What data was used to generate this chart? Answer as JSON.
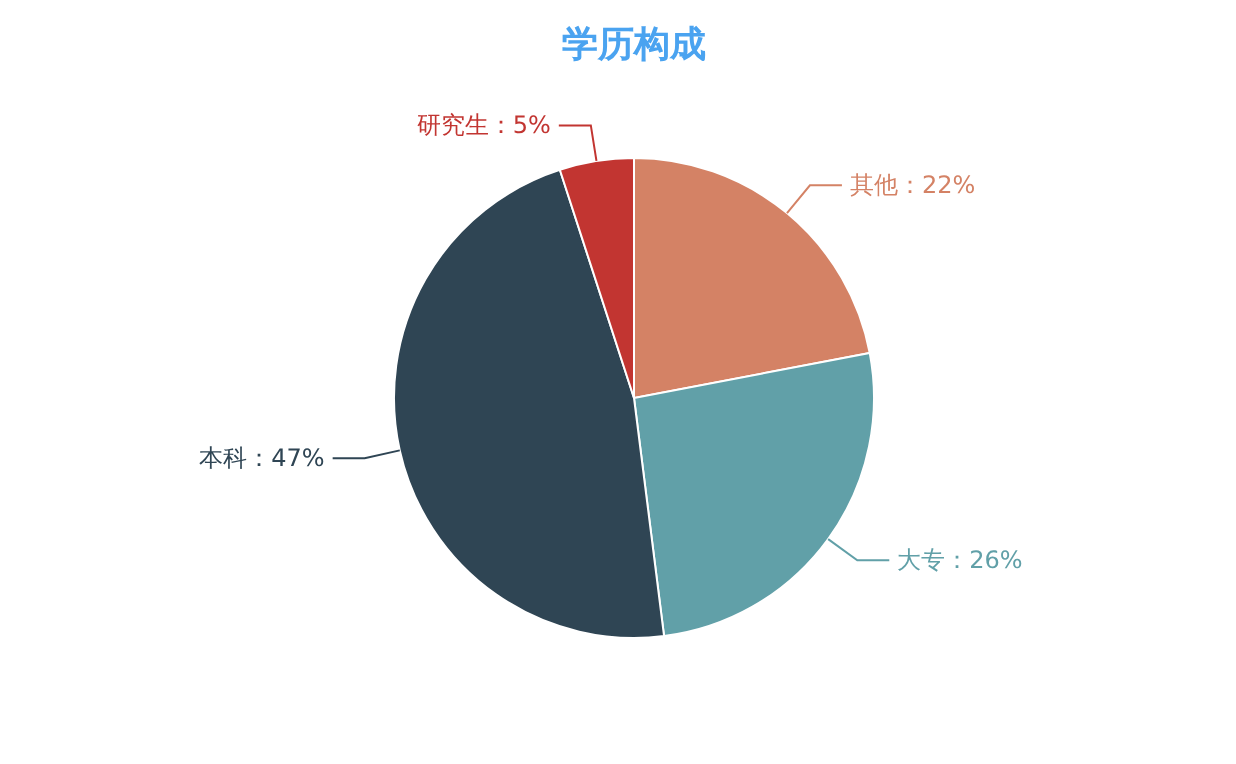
{
  "chart_data": {
    "type": "pie",
    "title": "学历构成",
    "categories": [
      "其他",
      "大专",
      "本科",
      "研究生"
    ],
    "values": [
      22,
      26,
      47,
      5
    ],
    "value_labels": [
      "22%",
      "26%",
      "47%",
      "5%"
    ],
    "colors": [
      "#d48265",
      "#61a0a8",
      "#2f4554",
      "#c23531"
    ]
  }
}
